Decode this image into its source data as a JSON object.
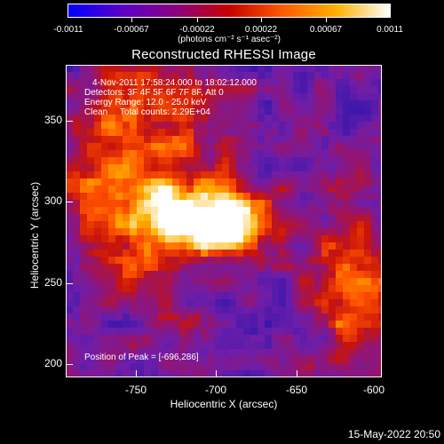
{
  "colorbar": {
    "ticks": [
      "-0.0011",
      "-0.00067",
      "-0.00022",
      "0.00022",
      "0.00067",
      "0.0011"
    ],
    "units": "(photons cm⁻² s⁻¹ asec⁻²)",
    "colormap": [
      "#0000ff",
      "#5a00c8",
      "#8a0080",
      "#c80000",
      "#ff5a00",
      "#ffb000",
      "#ffffff"
    ]
  },
  "plot": {
    "title": "Reconstructed RHESSI Image",
    "info_lines": [
      "4-Nov-2011 17:58:24.000 to 18:02:12.000",
      "Detectors: 3F 4F 5F 6F 7F 8F, Att 0",
      "Energy Range: 12.0 - 25.0 keV",
      "Clean     Total counts: 2.29E+04"
    ],
    "peak_text": "Position of Peak = [-696,286]",
    "xlabel": "Heliocentric X (arcsec)",
    "ylabel": "Heliocentric Y (arcsec)",
    "xticks": [
      "-750",
      "-700",
      "-650",
      "-600"
    ],
    "yticks": [
      "350",
      "300",
      "250",
      "200"
    ]
  },
  "footer": {
    "date": "15-May-2022 20:50"
  }
}
